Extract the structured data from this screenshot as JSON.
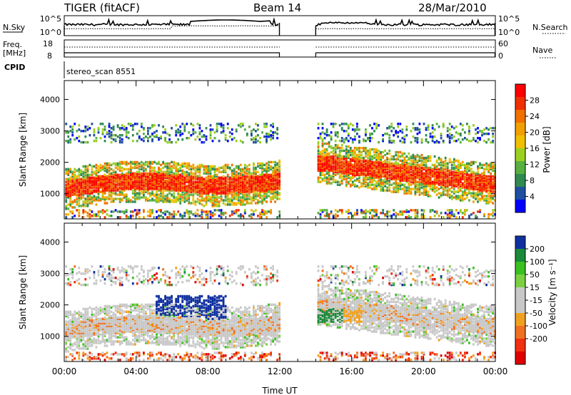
{
  "header": {
    "radar": "TIGER (fitACF)",
    "beam": "Beam 14",
    "date": "28/Mar/2010"
  },
  "colors": {
    "power": [
      "#0000ff",
      "#1f4fa0",
      "#2f8a50",
      "#58b040",
      "#9ad020",
      "#f0c000",
      "#f0a000",
      "#f07000",
      "#f03000",
      "#ff0000"
    ],
    "velocity": [
      "#1030a0",
      "#1a8a3a",
      "#3ac020",
      "#7ad040",
      "#c8c8c8",
      "#c8c8c8",
      "#f0a020",
      "#f07020",
      "#f03010",
      "#e00000"
    ],
    "gray": "#c8c8c8"
  },
  "chart_data": [
    {
      "type": "line",
      "name": "noise-panel",
      "ylabel": "N.Sky",
      "ylabel_right": "N.Search",
      "ytick_labels": [
        "10^5",
        "10^0"
      ],
      "ytick_labels_right": [
        "10^5",
        "10^0"
      ]
    },
    {
      "type": "line",
      "name": "freq-panel",
      "ylabel": "Freq.\n[MHz]",
      "ylabel_right": "Nave",
      "yticks": [
        8,
        18
      ],
      "yticks_right": [
        0,
        60
      ]
    },
    {
      "type": "table",
      "name": "cpid-panel",
      "label": "CPID",
      "segments": [
        {
          "x_start": 0,
          "x_end": 12,
          "text": "stereo_scan 8551"
        }
      ]
    },
    {
      "type": "heatmap",
      "name": "power",
      "ylabel": "Slant Range [km]",
      "yticks": [
        1000,
        2000,
        3000,
        4000
      ],
      "ylim": [
        200,
        4600
      ],
      "xlim": [
        0,
        24
      ],
      "colorbar_label": "Power [dB]",
      "colorbar_ticks": [
        4,
        8,
        12,
        16,
        20,
        24,
        28
      ],
      "colorbar_range": [
        0,
        32
      ]
    },
    {
      "type": "heatmap",
      "name": "velocity",
      "ylabel": "Slant Range [km]",
      "yticks": [
        1000,
        2000,
        3000,
        4000
      ],
      "ylim": [
        200,
        4600
      ],
      "xlim": [
        0,
        24
      ],
      "colorbar_label": "Velocity [m s⁻¹]",
      "colorbar_tick_labels": [
        "200",
        "100",
        "50",
        "15",
        "-15",
        "-50",
        "-100",
        "-200"
      ],
      "xticks": [
        "00:00",
        "04:00",
        "08:00",
        "12:00",
        "16:00",
        "20:00",
        "00:00"
      ],
      "xlabel": "Time UT"
    }
  ]
}
